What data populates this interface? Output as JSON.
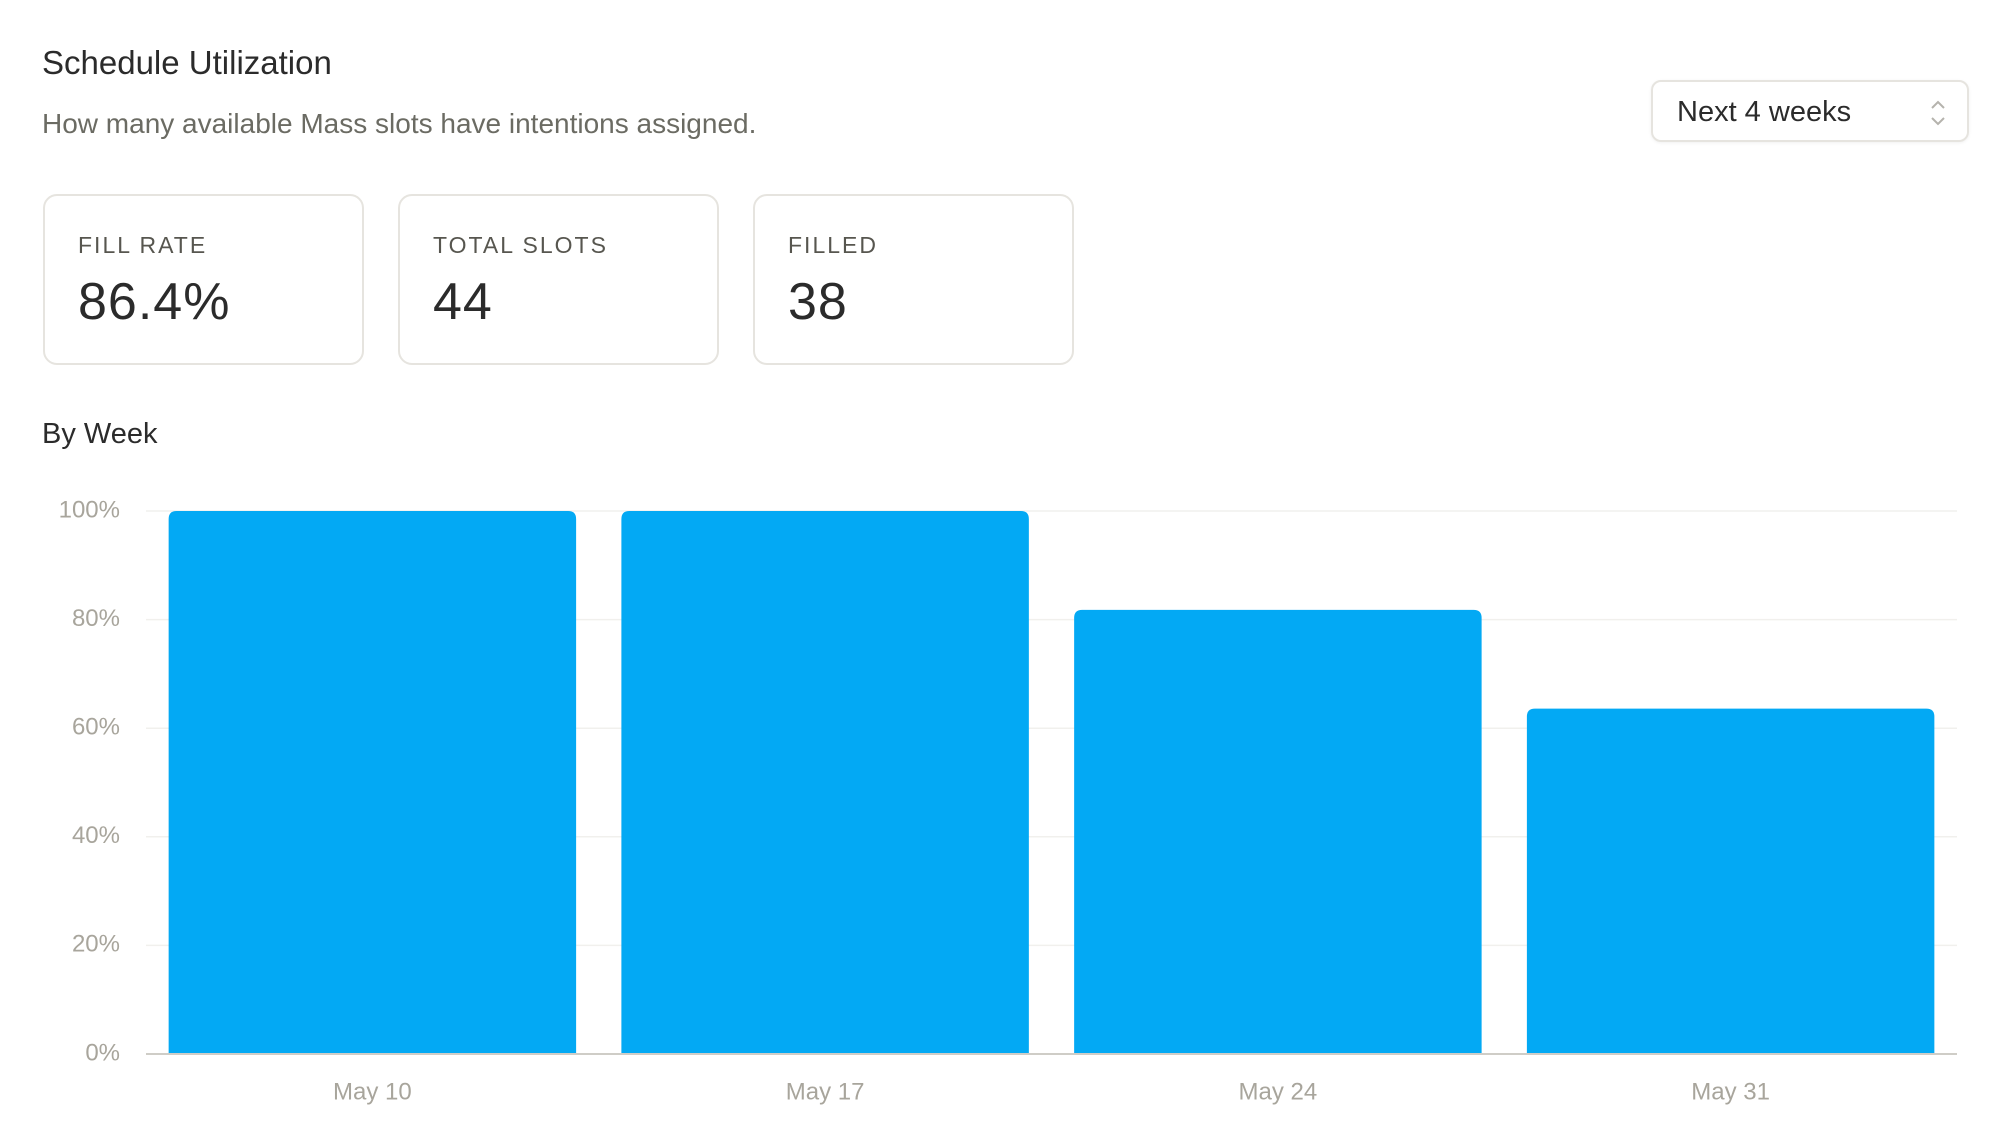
{
  "header": {
    "title": "Schedule Utilization",
    "subtitle": "How many available Mass slots have intentions assigned."
  },
  "filter": {
    "label": "Next 4 weeks"
  },
  "stats": [
    {
      "label": "FILL RATE",
      "value": "86.4%"
    },
    {
      "label": "TOTAL SLOTS",
      "value": "44"
    },
    {
      "label": "FILLED",
      "value": "38"
    }
  ],
  "chart_data": {
    "type": "bar",
    "title": "By Week",
    "categories": [
      "May 10",
      "May 17",
      "May 24",
      "May 31"
    ],
    "values": [
      100,
      100,
      81.8,
      63.6
    ],
    "color": "#03a9f4",
    "ylim": [
      0,
      100
    ],
    "yticks": [
      {
        "value": 0,
        "label": "0%"
      },
      {
        "value": 20,
        "label": "20%"
      },
      {
        "value": 40,
        "label": "40%"
      },
      {
        "value": 60,
        "label": "60%"
      },
      {
        "value": 80,
        "label": "80%"
      },
      {
        "value": 100,
        "label": "100%"
      }
    ],
    "grid": true
  }
}
